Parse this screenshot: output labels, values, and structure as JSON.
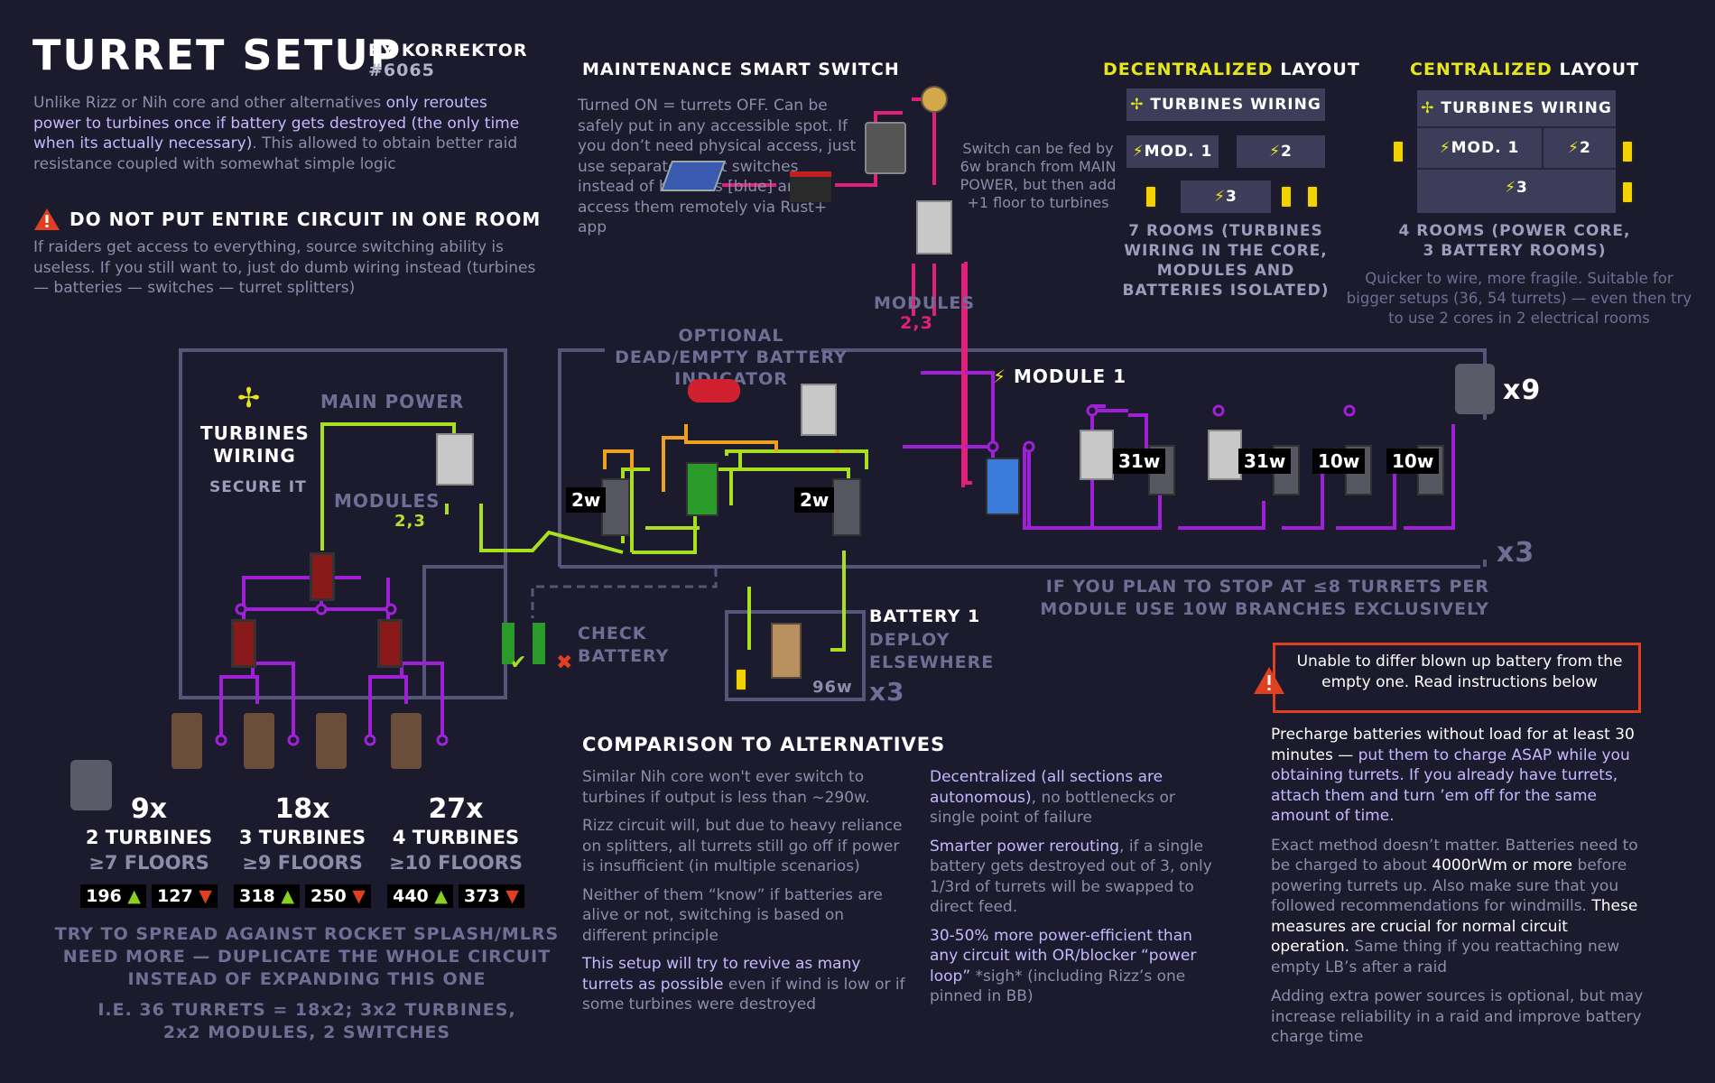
{
  "colors": {
    "bg": "#1c1b2e",
    "purple": "#a020d8",
    "green": "#a8e020",
    "orange": "#f0a020",
    "pink": "#e0207a",
    "frame": "#5a5a80",
    "warn": "#e04020"
  },
  "header": {
    "title": "TURRET SETUP",
    "by": "BY KORREKTOR",
    "tag": "#6065",
    "intro_parts": [
      {
        "t": "Unlike Rizz or Nih core and other alternatives ",
        "h": false
      },
      {
        "t": "only reroutes power to turbines once if battery gets destroyed (the only time when its actually necessary)",
        "h": true
      },
      {
        "t": ". This allowed to obtain better raid resistance coupled with somewhat simple logic",
        "h": false
      }
    ],
    "warn_title": "DO NOT PUT ENTIRE CIRCUIT IN ONE ROOM",
    "warn_text": "If raiders get access to everything, source switching ability is useless. If you still want to, just do dumb wiring instead (turbines — batteries — switches — turret splitters)"
  },
  "maintenance": {
    "title": "MAINTENANCE SMART SWITCH",
    "text": "Turned ON = turrets OFF. Can be safely put in any accessible spot. If you don’t need physical access, just use separate smart switches instead of blockers [blue] and access them remotely via Rust+ app",
    "side_note": "Switch can be fed by 6w branch from MAIN POWER, but then add +1 floor to turbines",
    "modules_label": "MODULES",
    "modules_num": "2,3"
  },
  "decentralized": {
    "title_hl": "DECENTRALIZED",
    "title_rest": "LAYOUT",
    "wiring": "TURBINES WIRING",
    "mod1": "MOD. 1",
    "m2": "2",
    "m3": "3",
    "desc": "7 ROOMS (TURBINES WIRING IN THE CORE, MODULES AND BATTERIES ISOLATED)"
  },
  "centralized": {
    "title_hl": "CENTRALIZED",
    "title_rest": "LAYOUT",
    "wiring": "TURBINES WIRING",
    "mod1": "MOD. 1",
    "m2": "2",
    "m3": "3",
    "desc": "4 ROOMS (POWER CORE, 3 BATTERY ROOMS)",
    "note": "Quicker to wire, more fragile. Suitable for bigger setups (36, 54 turrets) — even then try to use 2 cores in 2 electrical rooms"
  },
  "core": {
    "turbines": "TURBINES WIRING",
    "secure": "SECURE IT",
    "main_power": "MAIN POWER",
    "modules": "MODULES",
    "modules_num": "2,3",
    "optional": "OPTIONAL DEAD/EMPTY BATTERY INDICATOR",
    "w2a": "2w",
    "w2b": "2w",
    "check_battery": "CHECK BATTERY",
    "battery_title": "BATTERY 1",
    "battery_sub": "DEPLOY ELSEWHERE",
    "w96": "96w",
    "x3_battery": "x3",
    "module1": "MODULE 1",
    "w31a": "31w",
    "w31b": "31w",
    "w10a": "10w",
    "w10b": "10w",
    "x9": "x9",
    "x3_module": "x3",
    "module_note": "IF YOU PLAN TO STOP AT ≤8 TURRETS PER MODULE USE 10W BRANCHES EXCLUSIVELY"
  },
  "tiers": [
    {
      "count": "9x",
      "turbines": "2 TURBINES",
      "floors": "≥7 FLOORS",
      "up": "196",
      "down": "127"
    },
    {
      "count": "18x",
      "turbines": "3 TURBINES",
      "floors": "≥9 FLOORS",
      "up": "318",
      "down": "250"
    },
    {
      "count": "27x",
      "turbines": "4 TURBINES",
      "floors": "≥10 FLOORS",
      "up": "440",
      "down": "373"
    }
  ],
  "spread": {
    "line1": "TRY TO SPREAD AGAINST ROCKET SPLASH/MLRS NEED MORE — DUPLICATE THE WHOLE CIRCUIT INSTEAD OF EXPANDING THIS ONE",
    "line2": "I.E. 36 TURRETS = 18x2; 3x2 TURBINES, 2x2 MODULES, 2 SWITCHES"
  },
  "comparison": {
    "title": "COMPARISON TO ALTERNATIVES",
    "left": [
      [
        {
          "t": "Similar Nih core won't ever switch to turbines if output is less than ~290w.",
          "h": false
        }
      ],
      [
        {
          "t": "Rizz circuit will, but due to heavy reliance on splitters, all turrets still go off if power is insufficient (in multiple scenarios)",
          "h": false
        }
      ],
      [
        {
          "t": "Neither of them “know” if batteries are alive or not, switching is based on different principle",
          "h": false
        }
      ],
      [
        {
          "t": "This setup will try to revive as many turrets as possible",
          "h": true
        },
        {
          "t": " even if wind is low or if some turbines were destroyed",
          "h": false
        }
      ]
    ],
    "right": [
      [
        {
          "t": "Decentralized (all sections are autonomous)",
          "h": true
        },
        {
          "t": ", no bottlenecks or single point of failure",
          "h": false
        }
      ],
      [
        {
          "t": "Smarter power rerouting",
          "h": true
        },
        {
          "t": ", if a single battery gets destroyed out of 3, only 1/3rd of turrets will be swapped to direct feed.",
          "h": false
        }
      ],
      [
        {
          "t": "30-50% more power-efficient than any circuit with OR/blocker “power loop”",
          "h": true
        },
        {
          "t": " *sigh* (including Rizz’s one pinned in BB)",
          "h": false
        }
      ]
    ]
  },
  "warning_box": "Unable to differ blown up battery from the empty one. Read instructions below",
  "instructions": [
    [
      {
        "t": "Precharge batteries without load for at least 30 minutes — ",
        "c": "wt"
      },
      {
        "t": "put them to charge ASAP while you obtaining turrets. If you already have turrets, attach them and turn ’em off for the same amount of time.",
        "c": "hl"
      }
    ],
    [
      {
        "t": "Exact method doesn’t matter. Batteries need to be charged to about ",
        "c": "muted"
      },
      {
        "t": "4000rWm or more",
        "c": "wt"
      },
      {
        "t": " before powering turrets up. Also make sure that you followed recommendations for windmills. ",
        "c": "muted"
      },
      {
        "t": "These measures are crucial for normal circuit operation.",
        "c": "wt"
      },
      {
        "t": " Same thing if you reattaching new empty LB’s after a raid",
        "c": "muted"
      }
    ],
    [
      {
        "t": "Adding extra power sources is optional, but may increase reliability in a raid and improve battery charge time",
        "c": "muted"
      }
    ]
  ]
}
